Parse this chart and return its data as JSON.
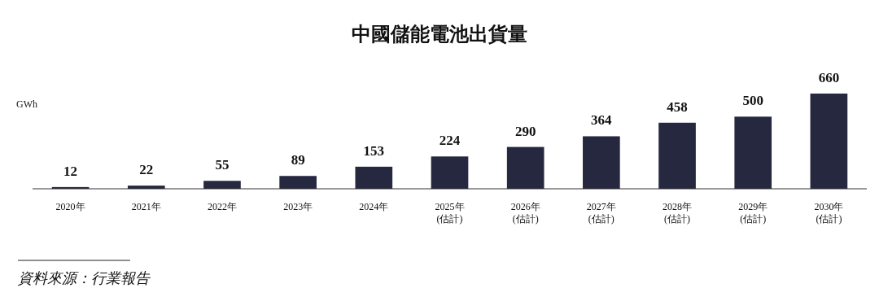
{
  "chart_data": {
    "type": "bar",
    "title": "中國儲能電池出貨量",
    "ylabel": "GWh",
    "categories": [
      "2020年",
      "2021年",
      "2022年",
      "2023年",
      "2024年",
      "2025年\n(估計)",
      "2026年\n(估計)",
      "2027年\n(估計)",
      "2028年\n(估計)",
      "2029年\n(估計)",
      "2030年\n(估計)"
    ],
    "values": [
      12,
      22,
      55,
      89,
      153,
      224,
      290,
      364,
      458,
      500,
      660
    ],
    "color": "#262840",
    "data_labels": true,
    "annotations": [
      "資料來源：行業報告"
    ]
  }
}
